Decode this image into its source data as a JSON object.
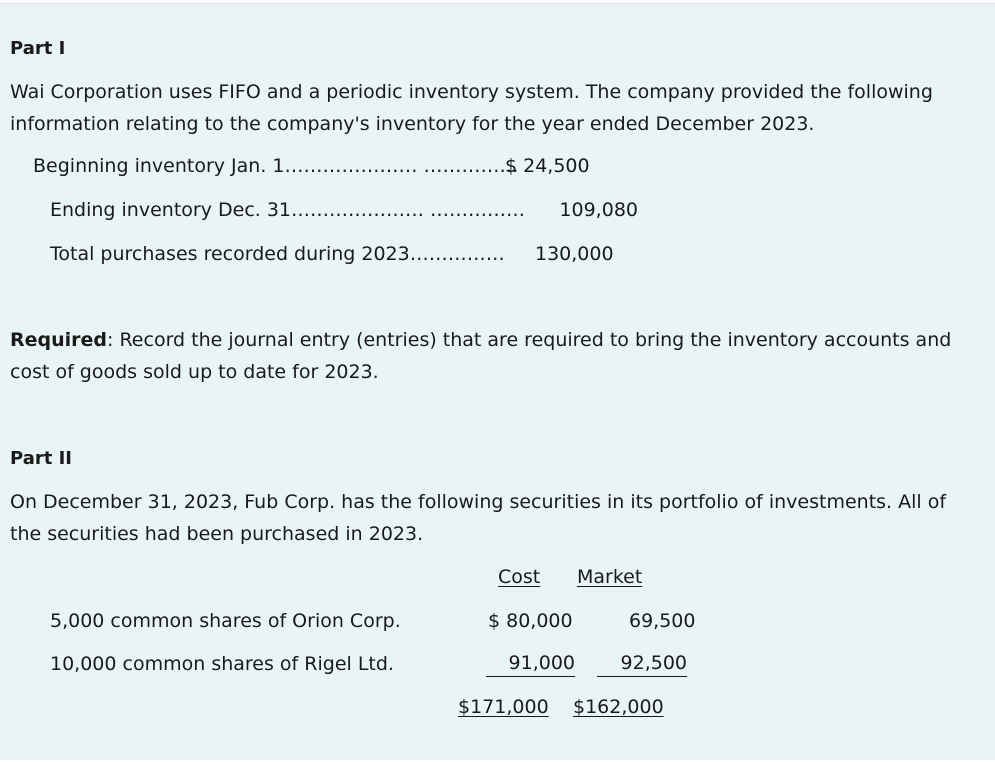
{
  "part1": {
    "heading": "Part I",
    "intro": "Wai Corporation uses FIFO and a periodic inventory system. The company provided the following information relating to the company's inventory for the year ended December 2023.",
    "rows": [
      {
        "label": "Beginning inventory Jan. 1…………………  ……………",
        "value": "$ 24,500"
      },
      {
        "label": "Ending inventory Dec. 31…………………  ……………",
        "value": "109,080"
      },
      {
        "label": "Total purchases recorded during 2023……………",
        "value": "130,000"
      }
    ],
    "required_label": "Required",
    "required_text": ": Record the journal entry (entries) that are required to bring the inventory accounts and cost of goods sold up to date for 2023."
  },
  "part2": {
    "heading": "Part II",
    "intro": "On December 31, 2023, Fub Corp. has the following securities in its portfolio of investments. All of the securities had been purchased in 2023.",
    "col_cost": "Cost",
    "col_market": "Market",
    "rows": [
      {
        "label": "5,000 common shares of Orion Corp.",
        "cost": "$  80,000",
        "market": "69,500"
      },
      {
        "label": "10,000 common shares of Rigel Ltd.",
        "cost": "91,000",
        "market": "92,500"
      }
    ],
    "total_cost": "$171,000",
    "total_market": "$162,000"
  }
}
